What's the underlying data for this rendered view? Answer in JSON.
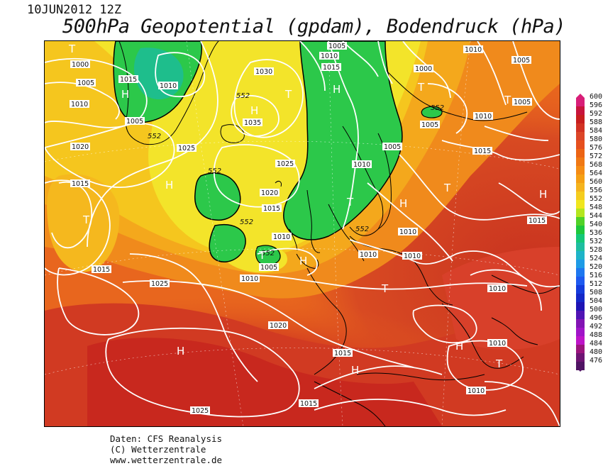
{
  "header": {
    "datetime": "10JUN2012 12Z",
    "title": "500hPa Geopotential (gpdam), Bodendruck (hPa)"
  },
  "colors": {
    "deep_red": "#c8281e",
    "red": "#dc4123",
    "orange_red": "#e8641e",
    "orange": "#f08c1e",
    "light_orange": "#f5aa1e",
    "yellow_orange": "#f5c81e",
    "yellow": "#f5e628",
    "light_green": "#1ec83c",
    "green": "#28c850",
    "teal": "#1ebe8c",
    "isobar": "#ffffff",
    "coast": "#000000"
  },
  "legend": {
    "unit": "gpdam",
    "values": [
      "600",
      "596",
      "592",
      "588",
      "584",
      "580",
      "576",
      "572",
      "568",
      "564",
      "560",
      "556",
      "552",
      "548",
      "544",
      "540",
      "536",
      "532",
      "528",
      "524",
      "520",
      "516",
      "512",
      "508",
      "504",
      "500",
      "496",
      "492",
      "488",
      "484",
      "480",
      "476"
    ],
    "colors": [
      "#d81e78",
      "#c8143c",
      "#c81e1e",
      "#d23223",
      "#dc4628",
      "#e6501e",
      "#ec6414",
      "#f07814",
      "#f58c14",
      "#f5a014",
      "#f5b41e",
      "#f5cd1e",
      "#f0e61e",
      "#b4e61e",
      "#50d228",
      "#1ec83c",
      "#14c878",
      "#1ebea0",
      "#1eb4c8",
      "#1e9be6",
      "#1e78f0",
      "#1e5af0",
      "#143cdc",
      "#1428c8",
      "#1e14b4",
      "#5014b4",
      "#8214b4",
      "#a014c8",
      "#be14c8",
      "#9b147d",
      "#6e1473",
      "#501464"
    ]
  },
  "isobar_labels": [
    "1000",
    "1005",
    "1010",
    "1015",
    "1020",
    "1025",
    "1030",
    "1035",
    "1010",
    "1005",
    "1015",
    "1010",
    "1005",
    "1000",
    "1005",
    "1010",
    "1015",
    "1010",
    "1005",
    "1025",
    "1020",
    "1015",
    "1010",
    "1005",
    "1010",
    "1010",
    "1015",
    "1010",
    "1010",
    "1015",
    "1025",
    "1020",
    "1015",
    "1010",
    "1010",
    "1025",
    "1015",
    "1010",
    "1005",
    "1015",
    "1005",
    "1015",
    "1015",
    "1010",
    "1020",
    "1010"
  ],
  "geopotential_labels": [
    "552",
    "552",
    "552",
    "552",
    "552",
    "552",
    "552",
    "552"
  ],
  "pressure_centres": {
    "high": "H",
    "low": "T"
  },
  "credits": {
    "line1": "Daten: CFS Reanalysis",
    "line2": "(C) Wetterzentrale",
    "line3": "www.wetterzentrale.de"
  }
}
